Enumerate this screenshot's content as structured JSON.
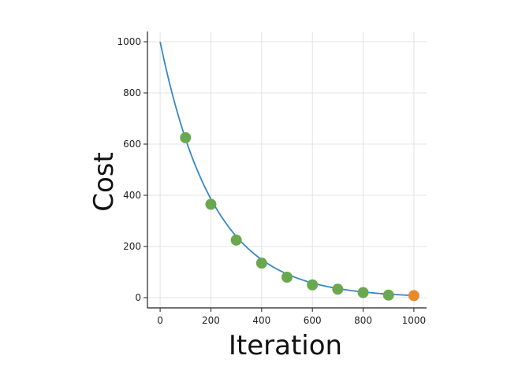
{
  "chart_data": {
    "type": "line",
    "title": "",
    "xlabel": "Iteration",
    "ylabel": "Cost",
    "xlim": [
      -50,
      1050
    ],
    "ylim": [
      -40,
      1040
    ],
    "x_ticks": [
      0,
      200,
      400,
      600,
      800,
      1000
    ],
    "y_ticks": [
      0,
      200,
      400,
      600,
      800,
      1000
    ],
    "x_tick_labels": [
      "0",
      "200",
      "400",
      "600",
      "800",
      "1000"
    ],
    "y_tick_labels": [
      "0",
      "200",
      "400",
      "600",
      "800",
      "1000"
    ],
    "grid": true,
    "legend": "none",
    "series": [
      {
        "type": "line",
        "color": "#3a87c4",
        "function": "cost = 1000 * exp(-x / 210)",
        "x": [
          0,
          100,
          200,
          300,
          400,
          500,
          600,
          700,
          800,
          900,
          1000
        ],
        "y": [
          1000,
          625,
          365,
          225,
          135,
          80,
          50,
          33,
          20,
          10,
          8
        ]
      },
      {
        "type": "scatter",
        "color": "#6aa84f",
        "x": [
          100,
          200,
          300,
          400,
          500,
          600,
          700,
          800,
          900
        ],
        "y": [
          625,
          365,
          225,
          135,
          80,
          50,
          33,
          20,
          10
        ]
      },
      {
        "type": "scatter",
        "color": "#e8892b",
        "x": [
          1000
        ],
        "y": [
          8
        ]
      }
    ]
  }
}
